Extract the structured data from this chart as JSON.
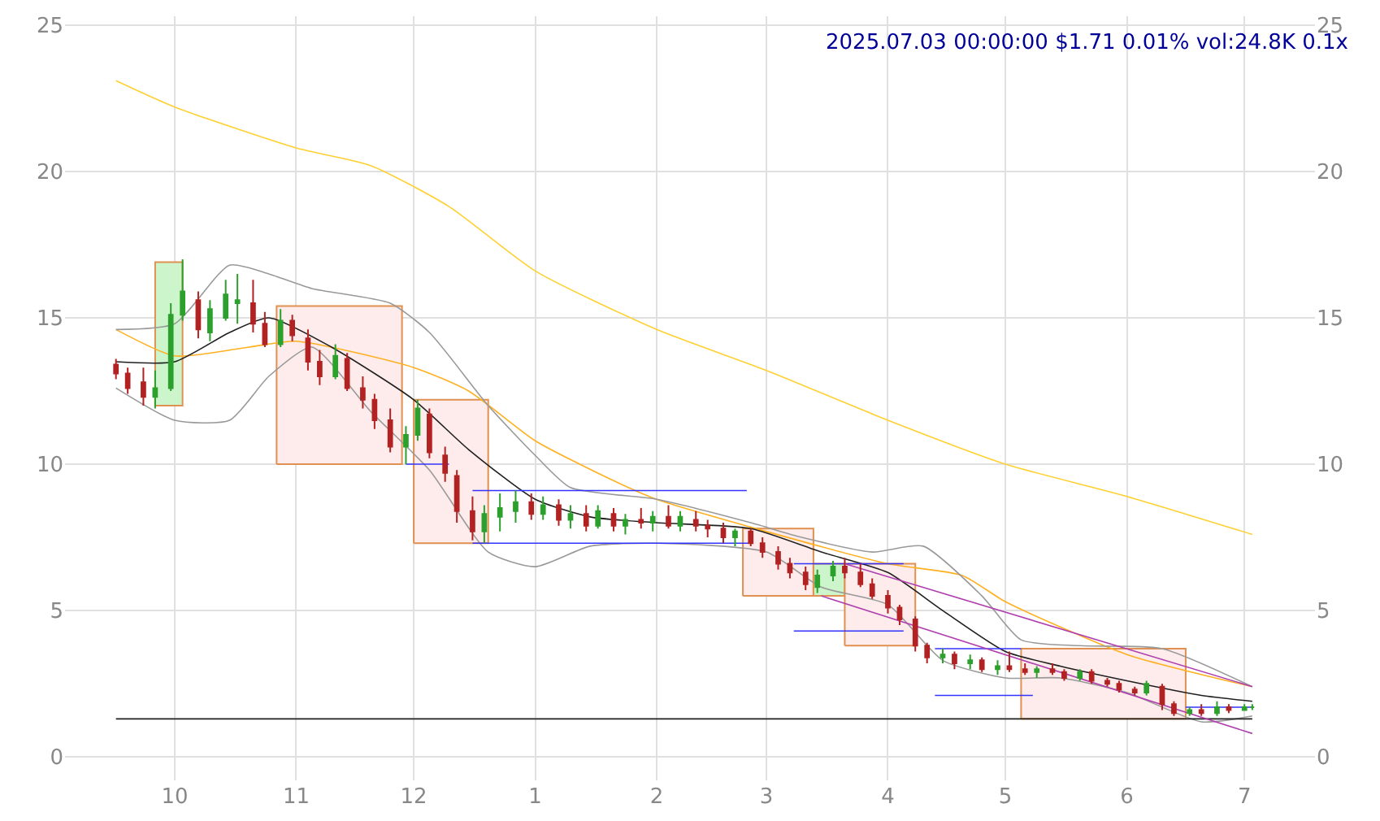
{
  "chart_data": {
    "type": "candlestick",
    "annotations": [
      "2025.07.03 00:00:00 $1.71 0.01% vol:24.8K 0.1x"
    ],
    "x": [
      "2024-09-16",
      "2024-09-19",
      "2024-09-23",
      "2024-09-26",
      "2024-09-30",
      "2024-10-03",
      "2024-10-07",
      "2024-10-10",
      "2024-10-14",
      "2024-10-17",
      "2024-10-21",
      "2024-10-24",
      "2024-10-28",
      "2024-10-31",
      "2024-11-04",
      "2024-11-07",
      "2024-11-11",
      "2024-11-14",
      "2024-11-18",
      "2024-11-21",
      "2024-11-25",
      "2024-11-29",
      "2024-12-02",
      "2024-12-05",
      "2024-12-09",
      "2024-12-12",
      "2024-12-16",
      "2024-12-19",
      "2024-12-23",
      "2024-12-27",
      "2024-12-31",
      "2025-01-03",
      "2025-01-07",
      "2025-01-10",
      "2025-01-14",
      "2025-01-17",
      "2025-01-21",
      "2025-01-24",
      "2025-01-28",
      "2025-01-31",
      "2025-02-04",
      "2025-02-07",
      "2025-02-11",
      "2025-02-14",
      "2025-02-18",
      "2025-02-21",
      "2025-02-25",
      "2025-02-28",
      "2025-03-04",
      "2025-03-07",
      "2025-03-11",
      "2025-03-14",
      "2025-03-18",
      "2025-03-21",
      "2025-03-25",
      "2025-03-28",
      "2025-04-01",
      "2025-04-04",
      "2025-04-08",
      "2025-04-11",
      "2025-04-15",
      "2025-04-18",
      "2025-04-22",
      "2025-04-25",
      "2025-04-29",
      "2025-05-02",
      "2025-05-06",
      "2025-05-09",
      "2025-05-13",
      "2025-05-16",
      "2025-05-20",
      "2025-05-23",
      "2025-05-27",
      "2025-05-30",
      "2025-06-03",
      "2025-06-06",
      "2025-06-10",
      "2025-06-13",
      "2025-06-17",
      "2025-06-20",
      "2025-06-24",
      "2025-06-27",
      "2025-07-01",
      "2025-07-03"
    ],
    "ohlc": [
      [
        13.4,
        13.6,
        12.9,
        13.1
      ],
      [
        13.1,
        13.3,
        12.4,
        12.6
      ],
      [
        12.8,
        13.3,
        12.0,
        12.3
      ],
      [
        12.3,
        13.2,
        11.9,
        12.6
      ],
      [
        12.6,
        15.5,
        12.5,
        15.1
      ],
      [
        15.1,
        17.0,
        14.9,
        15.9
      ],
      [
        15.6,
        15.9,
        14.3,
        14.6
      ],
      [
        14.5,
        15.6,
        14.2,
        15.3
      ],
      [
        15.0,
        16.3,
        14.9,
        15.8
      ],
      [
        15.5,
        16.5,
        14.8,
        15.6
      ],
      [
        15.5,
        16.3,
        14.5,
        14.8
      ],
      [
        14.8,
        15.2,
        14.0,
        14.1
      ],
      [
        14.1,
        15.3,
        14.0,
        14.9
      ],
      [
        14.9,
        15.1,
        14.2,
        14.4
      ],
      [
        14.3,
        14.6,
        13.2,
        13.5
      ],
      [
        13.5,
        13.9,
        12.7,
        13.0
      ],
      [
        13.0,
        14.1,
        12.9,
        13.7
      ],
      [
        13.6,
        13.8,
        12.5,
        12.6
      ],
      [
        12.6,
        13.0,
        11.9,
        12.2
      ],
      [
        12.2,
        12.4,
        11.2,
        11.5
      ],
      [
        11.5,
        11.9,
        10.4,
        10.6
      ],
      [
        10.6,
        11.3,
        10.0,
        11.0
      ],
      [
        11.0,
        12.2,
        10.8,
        11.9
      ],
      [
        11.7,
        11.9,
        10.2,
        10.4
      ],
      [
        10.3,
        10.6,
        9.4,
        9.7
      ],
      [
        9.6,
        9.8,
        8.0,
        8.4
      ],
      [
        8.4,
        8.9,
        7.4,
        7.7
      ],
      [
        7.7,
        8.6,
        7.3,
        8.3
      ],
      [
        8.2,
        9.0,
        7.7,
        8.5
      ],
      [
        8.4,
        9.1,
        8.0,
        8.7
      ],
      [
        8.7,
        9.0,
        8.1,
        8.3
      ],
      [
        8.3,
        8.9,
        8.1,
        8.6
      ],
      [
        8.6,
        8.8,
        7.9,
        8.1
      ],
      [
        8.1,
        8.6,
        7.8,
        8.3
      ],
      [
        8.3,
        8.6,
        7.7,
        7.9
      ],
      [
        7.9,
        8.6,
        7.8,
        8.4
      ],
      [
        8.3,
        8.5,
        7.7,
        7.9
      ],
      [
        7.9,
        8.3,
        7.6,
        8.1
      ],
      [
        8.1,
        8.5,
        7.8,
        8.0
      ],
      [
        8.0,
        8.4,
        7.7,
        8.2
      ],
      [
        8.2,
        8.6,
        7.8,
        7.9
      ],
      [
        7.9,
        8.4,
        7.7,
        8.2
      ],
      [
        8.1,
        8.4,
        7.7,
        7.9
      ],
      [
        7.9,
        8.1,
        7.5,
        7.8
      ],
      [
        7.8,
        8.0,
        7.3,
        7.5
      ],
      [
        7.5,
        7.8,
        7.2,
        7.7
      ],
      [
        7.7,
        7.8,
        7.2,
        7.3
      ],
      [
        7.3,
        7.5,
        6.8,
        7.0
      ],
      [
        7.0,
        7.2,
        6.4,
        6.6
      ],
      [
        6.6,
        6.8,
        6.1,
        6.3
      ],
      [
        6.3,
        6.5,
        5.7,
        5.9
      ],
      [
        5.8,
        6.4,
        5.6,
        6.2
      ],
      [
        6.2,
        6.7,
        6.0,
        6.5
      ],
      [
        6.5,
        6.8,
        6.1,
        6.3
      ],
      [
        6.3,
        6.6,
        5.8,
        5.9
      ],
      [
        5.9,
        6.1,
        5.4,
        5.5
      ],
      [
        5.5,
        5.7,
        4.9,
        5.1
      ],
      [
        5.1,
        5.2,
        4.5,
        4.7
      ],
      [
        4.7,
        4.8,
        3.6,
        3.8
      ],
      [
        3.8,
        3.9,
        3.2,
        3.4
      ],
      [
        3.4,
        3.7,
        3.2,
        3.5
      ],
      [
        3.5,
        3.6,
        3.0,
        3.2
      ],
      [
        3.2,
        3.5,
        3.0,
        3.3
      ],
      [
        3.3,
        3.4,
        2.9,
        3.0
      ],
      [
        3.0,
        3.3,
        2.8,
        3.1
      ],
      [
        3.1,
        3.6,
        2.9,
        3.0
      ],
      [
        3.0,
        3.2,
        2.8,
        2.9
      ],
      [
        2.9,
        3.1,
        2.7,
        3.0
      ],
      [
        3.0,
        3.2,
        2.8,
        2.9
      ],
      [
        2.9,
        3.0,
        2.6,
        2.7
      ],
      [
        2.7,
        3.0,
        2.6,
        2.9
      ],
      [
        2.9,
        3.0,
        2.5,
        2.6
      ],
      [
        2.6,
        2.7,
        2.4,
        2.5
      ],
      [
        2.5,
        2.6,
        2.2,
        2.3
      ],
      [
        2.3,
        2.4,
        2.1,
        2.2
      ],
      [
        2.2,
        2.6,
        2.1,
        2.5
      ],
      [
        2.4,
        2.5,
        1.6,
        1.8
      ],
      [
        1.8,
        1.9,
        1.4,
        1.5
      ],
      [
        1.5,
        1.7,
        1.4,
        1.6
      ],
      [
        1.6,
        1.8,
        1.4,
        1.5
      ],
      [
        1.5,
        1.9,
        1.4,
        1.7
      ],
      [
        1.7,
        1.8,
        1.5,
        1.6
      ],
      [
        1.6,
        1.8,
        1.6,
        1.7
      ],
      [
        1.7,
        1.8,
        1.6,
        1.7
      ]
    ],
    "series": [
      {
        "type": "area",
        "color": "#ccf5cc",
        "x": [
          "2024-09-26",
          "2024-09-26",
          "2024-10-03",
          "2024-10-03",
          "2024-09-26"
        ],
        "values": [
          12.0,
          16.9,
          16.9,
          12.0,
          12.0
        ]
      },
      {
        "type": "area",
        "color": "#fdeceb",
        "x": [
          "2024-10-27",
          "2024-10-27",
          "2024-11-28",
          "2024-11-28",
          "2024-10-27"
        ],
        "values": [
          10.0,
          15.4,
          15.4,
          10.0,
          10.0
        ]
      },
      {
        "type": "area",
        "color": "#fdeceb",
        "x": [
          "2024-12-01",
          "2024-12-01",
          "2024-12-20",
          "2024-12-20",
          "2024-12-01"
        ],
        "values": [
          7.3,
          12.2,
          12.2,
          7.3,
          7.3
        ]
      },
      {
        "type": "area",
        "color": "#fdeceb",
        "x": [
          "2025-02-23",
          "2025-02-23",
          "2025-03-13",
          "2025-03-13",
          "2025-02-23"
        ],
        "values": [
          5.5,
          7.8,
          7.8,
          5.5,
          5.5
        ]
      },
      {
        "type": "area",
        "color": "#ccf5cc",
        "x": [
          "2025-03-13",
          "2025-03-13",
          "2025-03-21",
          "2025-03-21",
          "2025-03-13"
        ],
        "values": [
          5.5,
          6.6,
          6.6,
          5.5,
          5.5
        ]
      },
      {
        "type": "area",
        "color": "#fdeceb",
        "x": [
          "2025-03-21",
          "2025-03-21",
          "2025-04-08",
          "2025-04-08",
          "2025-03-21"
        ],
        "values": [
          3.8,
          6.6,
          6.6,
          3.8,
          3.8
        ]
      },
      {
        "type": "area",
        "color": "#fdeceb",
        "x": [
          "2025-05-05",
          "2025-05-05",
          "2025-06-16",
          "2025-06-16",
          "2025-05-05"
        ],
        "values": [
          1.3,
          3.7,
          3.7,
          1.3,
          1.3
        ]
      },
      {
        "type": "line",
        "color": "#ffd030",
        "x": [
          "2024-09-16",
          "2024-10-01",
          "2024-11-01",
          "2024-11-20",
          "2024-12-10",
          "2025-01-01",
          "2025-02-01",
          "2025-03-01",
          "2025-04-01",
          "2025-05-01",
          "2025-06-01",
          "2025-07-03"
        ],
        "values": [
          23.1,
          22.2,
          20.8,
          20.2,
          18.8,
          16.6,
          14.6,
          13.2,
          11.5,
          10.0,
          8.9,
          7.6
        ]
      },
      {
        "type": "line",
        "color": "#ffb020",
        "x": [
          "2024-09-16",
          "2024-10-01",
          "2024-10-20",
          "2024-11-01",
          "2024-12-01",
          "2024-12-15",
          "2025-01-01",
          "2025-01-20",
          "2025-02-01",
          "2025-03-01",
          "2025-04-01",
          "2025-04-20",
          "2025-05-01",
          "2025-06-01",
          "2025-07-03"
        ],
        "values": [
          14.6,
          13.7,
          14.0,
          14.2,
          13.3,
          12.5,
          10.8,
          9.5,
          8.8,
          7.7,
          6.6,
          6.2,
          5.3,
          3.5,
          2.4
        ]
      },
      {
        "type": "line",
        "color": "#202020",
        "x": [
          "2024-09-16",
          "2024-10-01",
          "2024-10-15",
          "2024-10-25",
          "2024-11-10",
          "2024-12-01",
          "2024-12-15",
          "2025-01-01",
          "2025-01-15",
          "2025-02-01",
          "2025-02-25",
          "2025-03-15",
          "2025-04-01",
          "2025-04-15",
          "2025-05-01",
          "2025-05-15",
          "2025-06-01",
          "2025-06-20",
          "2025-07-03"
        ],
        "values": [
          13.5,
          13.5,
          14.5,
          15.0,
          14.0,
          12.2,
          10.5,
          8.8,
          8.2,
          8.0,
          7.8,
          7.0,
          6.3,
          5.0,
          3.6,
          3.1,
          2.6,
          2.1,
          1.9
        ]
      },
      {
        "type": "line",
        "color": "#999999",
        "x": [
          "2024-09-16",
          "2024-10-01",
          "2024-10-15",
          "2024-10-25",
          "2024-11-05",
          "2024-11-25",
          "2024-12-05",
          "2024-12-20",
          "2025-01-01",
          "2025-01-10",
          "2025-02-01",
          "2025-02-25",
          "2025-03-10",
          "2025-03-28",
          "2025-04-10",
          "2025-04-25",
          "2025-05-05",
          "2025-05-20",
          "2025-06-10",
          "2025-07-03"
        ],
        "values": [
          14.6,
          14.8,
          16.8,
          16.5,
          16.0,
          15.5,
          14.5,
          12.0,
          10.3,
          9.2,
          8.8,
          8.0,
          7.5,
          7.0,
          7.2,
          5.5,
          4.0,
          3.8,
          3.7,
          2.4
        ]
      },
      {
        "type": "line",
        "color": "#999999",
        "x": [
          "2024-09-16",
          "2024-10-01",
          "2024-10-15",
          "2024-10-25",
          "2024-11-05",
          "2024-11-20",
          "2024-12-05",
          "2024-12-20",
          "2025-01-01",
          "2025-01-15",
          "2025-02-01",
          "2025-03-01",
          "2025-03-15",
          "2025-04-01",
          "2025-04-15",
          "2025-05-01",
          "2025-05-15",
          "2025-06-01",
          "2025-06-20",
          "2025-07-03"
        ],
        "values": [
          12.6,
          11.5,
          11.5,
          13.0,
          14.0,
          11.8,
          9.8,
          7.0,
          6.5,
          7.2,
          7.3,
          7.0,
          5.8,
          5.2,
          3.3,
          2.7,
          2.7,
          2.2,
          1.2,
          1.4
        ]
      },
      {
        "type": "line",
        "color": "#3333ff",
        "x": [
          "2024-12-16",
          "2025-02-24"
        ],
        "values": [
          9.1,
          9.1
        ]
      },
      {
        "type": "line",
        "color": "#3333ff",
        "x": [
          "2024-12-16",
          "2025-02-25"
        ],
        "values": [
          7.3,
          7.3
        ]
      },
      {
        "type": "line",
        "color": "#3333ff",
        "x": [
          "2024-11-29",
          "2024-12-10"
        ],
        "values": [
          10.0,
          10.0
        ]
      },
      {
        "type": "line",
        "color": "#3333ff",
        "x": [
          "2025-03-08",
          "2025-04-05"
        ],
        "values": [
          6.6,
          6.6
        ]
      },
      {
        "type": "line",
        "color": "#3333ff",
        "x": [
          "2025-03-08",
          "2025-04-05"
        ],
        "values": [
          4.3,
          4.3
        ]
      },
      {
        "type": "line",
        "color": "#3333ff",
        "x": [
          "2025-04-13",
          "2025-05-05"
        ],
        "values": [
          3.7,
          3.7
        ]
      },
      {
        "type": "line",
        "color": "#3333ff",
        "x": [
          "2025-04-13",
          "2025-05-08"
        ],
        "values": [
          2.1,
          2.1
        ]
      },
      {
        "type": "line",
        "color": "#3333ff",
        "x": [
          "2025-06-16",
          "2025-07-03"
        ],
        "values": [
          1.7,
          1.7
        ]
      },
      {
        "type": "line",
        "color": "#202020",
        "x": [
          "2024-09-16",
          "2025-07-03"
        ],
        "values": [
          1.3,
          1.3
        ]
      },
      {
        "type": "line",
        "color": "#b040b0",
        "x": [
          "2025-03-21",
          "2025-07-03"
        ],
        "values": [
          6.6,
          2.4
        ]
      },
      {
        "type": "line",
        "color": "#b040b0",
        "x": [
          "2025-03-15",
          "2025-07-03"
        ],
        "values": [
          5.5,
          0.8
        ]
      }
    ],
    "xlim": [
      "2024-09-03",
      "2025-07-19"
    ],
    "xticks": [
      {
        "value": "2024-10-01",
        "label": "10"
      },
      {
        "value": "2024-11-01",
        "label": "11"
      },
      {
        "value": "2024-12-01",
        "label": "12"
      },
      {
        "value": "2025-01-01",
        "label": "1"
      },
      {
        "value": "2025-02-01",
        "label": "2"
      },
      {
        "value": "2025-03-01",
        "label": "3"
      },
      {
        "value": "2025-04-01",
        "label": "4"
      },
      {
        "value": "2025-05-01",
        "label": "5"
      },
      {
        "value": "2025-06-01",
        "label": "6"
      },
      {
        "value": "2025-07-01",
        "label": "7"
      }
    ],
    "ylim": [
      -0.8,
      25.3
    ],
    "yticks": [
      0,
      5,
      10,
      15,
      20,
      25
    ],
    "y2lim": [
      -0.8,
      25.3
    ],
    "y2ticks": [
      0,
      5,
      10,
      15,
      20,
      25
    ],
    "grid": true
  }
}
